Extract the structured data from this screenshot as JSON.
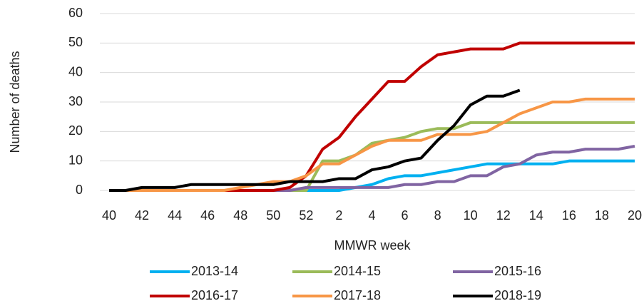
{
  "chart_data": {
    "type": "line",
    "y_label": "Number of deaths",
    "x_label": "MMWR week",
    "categories": [
      "40",
      null,
      "42",
      null,
      "44",
      null,
      "46",
      null,
      "48",
      null,
      "50",
      null,
      "52",
      null,
      "2",
      null,
      "4",
      null,
      "6",
      null,
      "8",
      null,
      "10",
      null,
      "12",
      null,
      "14",
      null,
      "16",
      null,
      "18",
      null,
      "20"
    ],
    "series": [
      {
        "name": "2013-14",
        "color": "#00b0f0",
        "values": [
          0,
          0,
          0,
          0,
          0,
          0,
          0,
          0,
          0,
          0,
          0,
          0,
          0,
          0,
          0,
          1,
          2,
          4,
          5,
          5,
          6,
          7,
          8,
          9,
          9,
          9,
          9,
          9,
          10,
          10,
          10,
          10,
          10
        ]
      },
      {
        "name": "2014-15",
        "color": "#9bbb59",
        "values": [
          0,
          0,
          0,
          0,
          0,
          0,
          0,
          0,
          0,
          0,
          0,
          0,
          0,
          10,
          10,
          12,
          16,
          17,
          18,
          20,
          21,
          21,
          23,
          23,
          23,
          23,
          23,
          23,
          23,
          23,
          23,
          23,
          23
        ]
      },
      {
        "name": "2015-16",
        "color": "#8064a2",
        "values": [
          0,
          0,
          0,
          0,
          0,
          0,
          0,
          0,
          0,
          0,
          0,
          0,
          1,
          1,
          1,
          1,
          1,
          1,
          2,
          2,
          3,
          3,
          5,
          5,
          8,
          9,
          12,
          13,
          13,
          14,
          14,
          14,
          15
        ]
      },
      {
        "name": "2016-17",
        "color": "#c00000",
        "values": [
          0,
          0,
          0,
          0,
          0,
          0,
          0,
          0,
          0,
          0,
          0,
          1,
          5,
          14,
          18,
          25,
          31,
          37,
          37,
          42,
          46,
          47,
          48,
          48,
          48,
          50,
          50,
          50,
          50,
          50,
          50,
          50,
          50
        ]
      },
      {
        "name": "2017-18",
        "color": "#f79646",
        "values": [
          0,
          0,
          0,
          0,
          0,
          0,
          0,
          0,
          1,
          2,
          3,
          3,
          5,
          9,
          9,
          12,
          15,
          17,
          17,
          17,
          19,
          19,
          19,
          20,
          23,
          26,
          28,
          30,
          30,
          31,
          31,
          31,
          31
        ]
      },
      {
        "name": "2018-19",
        "color": "#000000",
        "values": [
          0,
          0,
          1,
          1,
          1,
          2,
          2,
          2,
          2,
          2,
          2,
          3,
          3,
          3,
          4,
          4,
          7,
          8,
          10,
          11,
          17,
          22,
          29,
          32,
          32,
          34,
          null,
          null,
          null,
          null,
          null,
          null,
          null
        ]
      }
    ],
    "ylim": [
      0,
      60
    ],
    "yticks": [
      0,
      10,
      20,
      30,
      40,
      50,
      60
    ],
    "grid": true,
    "legend": "bottom"
  }
}
